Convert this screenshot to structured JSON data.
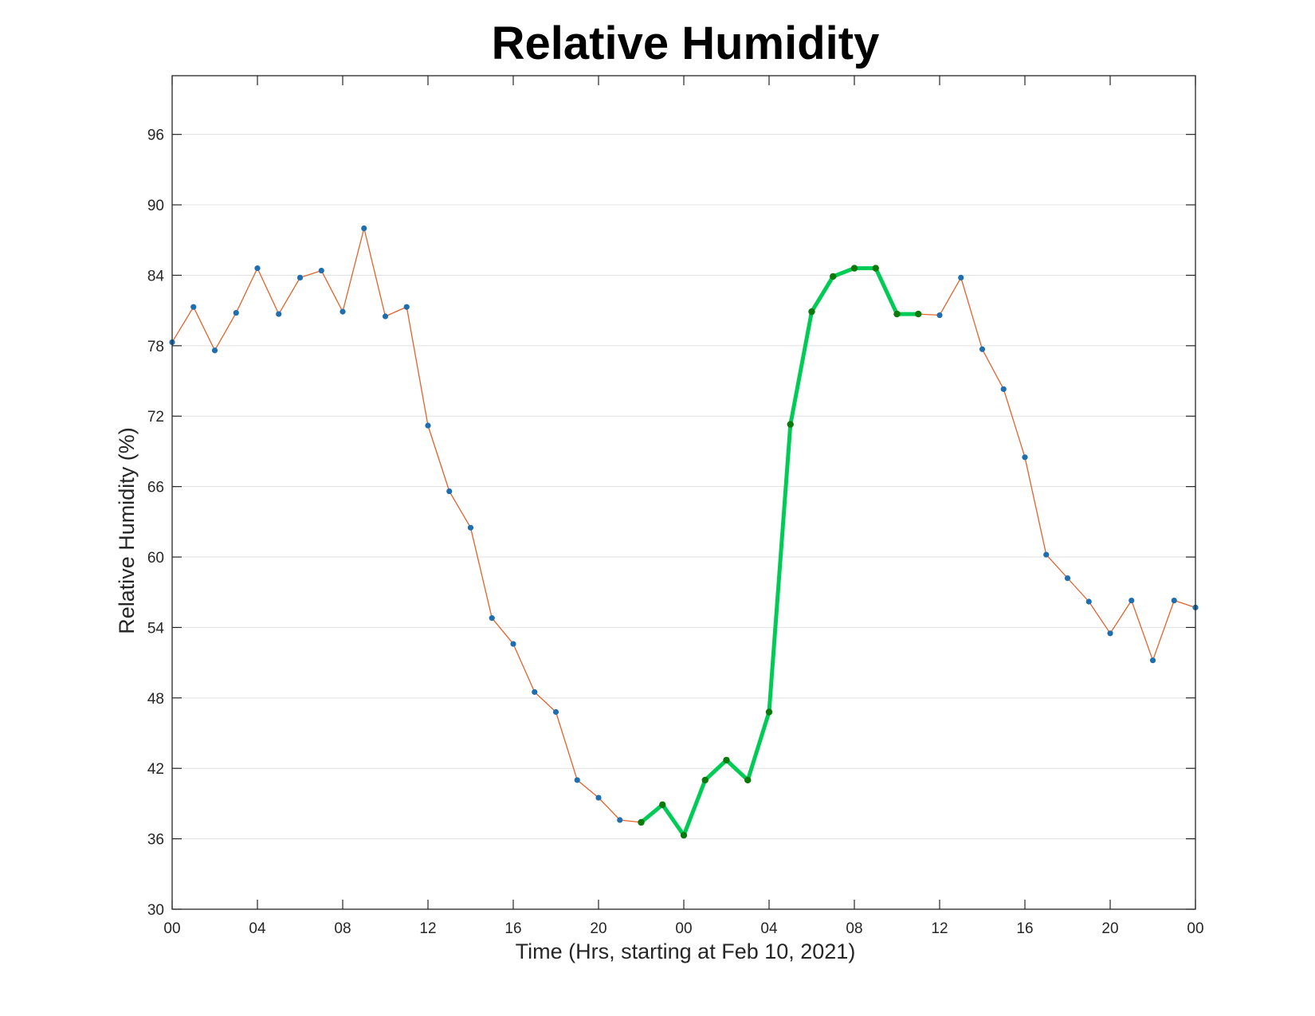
{
  "chart_data": {
    "type": "line",
    "title": "Relative Humidity",
    "xlabel": "Time (Hrs, starting at Feb 10, 2021)",
    "ylabel": "Relative Humidity (%)",
    "xlim": [
      0,
      48
    ],
    "ylim": [
      30,
      101
    ],
    "xtick_values": [
      0,
      4,
      8,
      12,
      16,
      20,
      24,
      28,
      32,
      36,
      40,
      44,
      48
    ],
    "xtick_labels": [
      "00",
      "04",
      "08",
      "12",
      "16",
      "20",
      "00",
      "04",
      "08",
      "12",
      "16",
      "20",
      "00"
    ],
    "ytick_values": [
      30,
      36,
      42,
      48,
      54,
      60,
      66,
      72,
      78,
      84,
      90,
      96
    ],
    "ytick_labels": [
      "30",
      "36",
      "42",
      "48",
      "54",
      "60",
      "66",
      "72",
      "78",
      "84",
      "90",
      "96"
    ],
    "grid": "horizontal",
    "legend": "none",
    "colors": {
      "base_line": "#e3622c",
      "base_marker": "#1f6fb0",
      "highlight_line": "#00cc55",
      "highlight_marker": "#0a7a0a",
      "axes": "#262626",
      "grid": "#e0e0e0"
    },
    "series": [
      {
        "x": [
          0,
          1,
          2,
          3,
          4,
          5,
          6,
          7,
          8,
          9,
          10,
          11,
          12,
          13,
          14,
          15,
          16,
          17,
          18,
          19,
          20,
          21,
          22,
          23,
          24,
          25,
          26,
          27,
          28,
          29,
          30,
          31,
          32,
          33,
          34,
          35,
          36,
          37,
          38,
          39,
          40,
          41,
          42,
          43,
          44,
          45,
          46,
          47,
          48
        ],
        "values": [
          78.3,
          81.3,
          77.6,
          80.8,
          84.6,
          80.7,
          83.8,
          84.4,
          80.9,
          88,
          80.5,
          81.3,
          71.2,
          65.6,
          62.5,
          54.8,
          52.6,
          48.5,
          46.8,
          41,
          39.5,
          37.6,
          37.4,
          38.9,
          36.3,
          41,
          42.7,
          41,
          46.8,
          71.3,
          80.9,
          83.9,
          84.6,
          84.6,
          80.7,
          80.7,
          80.6,
          83.8,
          77.7,
          74.3,
          68.5,
          60.2,
          58.2,
          56.2,
          53.5,
          56.3,
          51.2,
          56.3,
          55.7
        ]
      },
      {
        "x": [
          22,
          23,
          24,
          25,
          26,
          27,
          28,
          29,
          30,
          31,
          32,
          33,
          34,
          35
        ],
        "values": [
          37.4,
          38.9,
          36.3,
          41,
          42.7,
          41,
          46.8,
          71.3,
          80.9,
          83.9,
          84.6,
          84.6,
          80.7,
          80.7
        ]
      }
    ]
  }
}
